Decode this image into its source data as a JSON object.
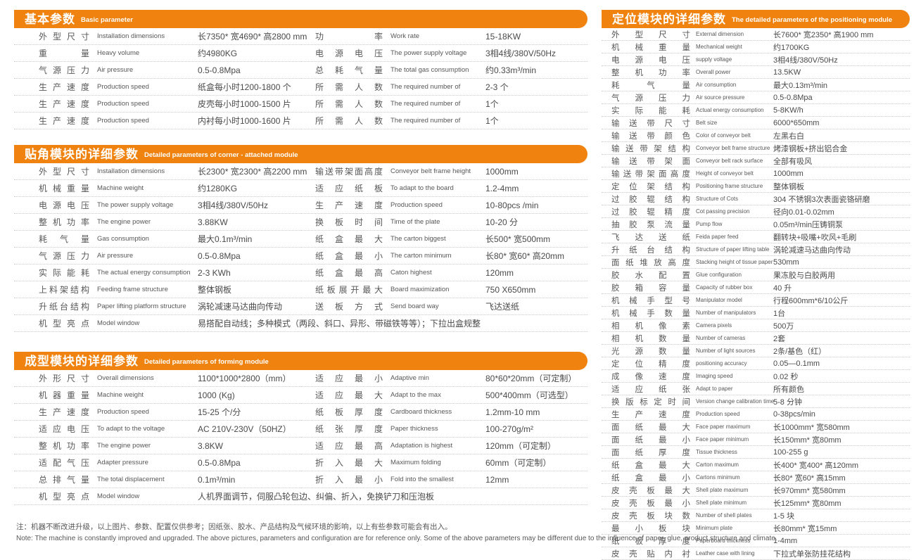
{
  "page": {
    "background": "#ffffff",
    "accent_orange": "#f0830f",
    "text_gray": "#595757"
  },
  "tables": [
    {
      "title_zh": "基本参数",
      "title_en": "Basic parameter",
      "rows_left": [
        {
          "zh": "外型尺寸",
          "en": "Installation  dimensions",
          "val": "长7350* 宽4690* 高2800 mm"
        },
        {
          "zh": "重量",
          "en": "Heavy  volume",
          "val": "约4980KG"
        },
        {
          "zh": "气源压力",
          "en": "Air  pressure",
          "val": "0.5-0.8Mpa"
        },
        {
          "zh": "生产速度",
          "en": "Production  speed",
          "val": "纸盒每小时1200-1800 个"
        },
        {
          "zh": "生产速度",
          "en": "Production  speed",
          "val": "皮壳每小时1000-1500 片"
        },
        {
          "zh": "生产速度",
          "en": "Production  speed",
          "val": "内衬每小时1000-1600 片"
        }
      ],
      "rows_right": [
        {
          "zh": "功率",
          "en": "Work rate",
          "val": "15-18KW"
        },
        {
          "zh": "电源电压",
          "en": "The power supply voltage",
          "val": "3相4线/380V/50Hz"
        },
        {
          "zh": "总耗气量",
          "en": "The total gas consumption",
          "val": "约0.33m³/min"
        },
        {
          "zh": "所需人数",
          "en": "The required number of",
          "val": "2-3 个"
        },
        {
          "zh": "所需人数",
          "en": "The required number of",
          "val": "1个"
        },
        {
          "zh": "所需人数",
          "en": "The required number of",
          "val": "1个"
        }
      ],
      "rows_full": []
    },
    {
      "title_zh": "贴角模块的详细参数",
      "title_en": "Detailed parameters of corner - attached module",
      "rows_left": [
        {
          "zh": "外型尺寸",
          "en": "Installation  dimensions",
          "val": "长2300* 宽2300* 高2200 mm"
        },
        {
          "zh": "机械重量",
          "en": "Machine  weight",
          "val": "约1280KG"
        },
        {
          "zh": "电源电压",
          "en": "The power supply voltage",
          "val": "3相4线/380V/50Hz"
        },
        {
          "zh": "整机功率",
          "en": "The engine power",
          "val": "3.88KW"
        },
        {
          "zh": "耗气量",
          "en": "Gas consumption",
          "val": "最大0.1m³/min"
        },
        {
          "zh": "气源压力",
          "en": "Air pressure",
          "val": "0.5-0.8Mpa"
        },
        {
          "zh": "实际能耗",
          "en": "The actual energy consumption",
          "val": "2-3 KWh"
        },
        {
          "zh": "上料架结构",
          "en": "Feeding frame structure",
          "val": "整体钢板"
        },
        {
          "zh": "升纸台结构",
          "en": "Paper lifting platform structure",
          "val": "涡轮减速马达曲向传动"
        }
      ],
      "rows_right": [
        {
          "zh": "输送带架面高度",
          "en": "Conveyor belt frame height",
          "val": "1000mm"
        },
        {
          "zh": "适应纸板",
          "en": "To adapt to the board",
          "val": "1.2-4mm"
        },
        {
          "zh": "生产速度",
          "en": "Production  speed",
          "val": "10-80pcs /min"
        },
        {
          "zh": "换板时间",
          "en": "Time of the plate",
          "val": "10-20 分"
        },
        {
          "zh": "纸盒最大",
          "en": "The carton biggest",
          "val": "长500* 宽500mm"
        },
        {
          "zh": "纸盒最小",
          "en": "The carton minimum",
          "val": "长80* 宽60* 高20mm"
        },
        {
          "zh": "纸盒最高",
          "en": "Caton highest",
          "val": "120mm"
        },
        {
          "zh": "纸板展开最大",
          "en": "Board  maximization",
          "val": "750 X650mm"
        },
        {
          "zh": "送板方式",
          "en": "Send board way",
          "val": "飞达送纸"
        }
      ],
      "rows_full": [
        {
          "zh": "机型亮点",
          "en": "Model window",
          "val": "易搭配自动线；多种模式（两段、斜口、异形、带磁铁等等）；下拉出盒规整"
        }
      ]
    },
    {
      "title_zh": "成型模块的详细参数",
      "title_en": "Detailed parameters of forming module",
      "rows_left": [
        {
          "zh": "外形尺寸",
          "en": "Overall  dimensions",
          "val": "1100*1000*2800（mm）"
        },
        {
          "zh": "机器重量",
          "en": "Machine  weight",
          "val": "1000 (Kg)"
        },
        {
          "zh": "生产速度",
          "en": "Production  speed",
          "val": "15-25 个/分"
        },
        {
          "zh": "适应电压",
          "en": "To adapt to the voltage",
          "val": "AC 210V-230V（50HZ）"
        },
        {
          "zh": "整机功率",
          "en": "The engine power",
          "val": "3.8KW"
        },
        {
          "zh": "适配气压",
          "en": "Adapter pressure",
          "val": "0.5-0.8Mpa"
        },
        {
          "zh": "总排气量",
          "en": "The total displacement",
          "val": "0.1m³/min"
        }
      ],
      "rows_right": [
        {
          "zh": "适应最小",
          "en": "Adaptive min",
          "val": "80*60*20mm（可定制）"
        },
        {
          "zh": "适应最大",
          "en": "Adapt to the max",
          "val": "500*400mm（可选型）"
        },
        {
          "zh": "纸板厚度",
          "en": "Cardboard  thickness",
          "val": "1.2mm-10 mm"
        },
        {
          "zh": "纸张厚度",
          "en": "Paper  thickness",
          "val": "100-270g/m²"
        },
        {
          "zh": "适应最高",
          "en": "Adaptation  is highest",
          "val": "120mm（可定制）"
        },
        {
          "zh": "折入最大",
          "en": "Maximum  folding",
          "val": "60mm（可定制）"
        },
        {
          "zh": "折入最小",
          "en": "Fold into the smallest",
          "val": "12mm"
        }
      ],
      "rows_full": [
        {
          "zh": "机型亮点",
          "en": "Model window",
          "val": "人机界面调节，伺服凸轮包边、纠偏、折入，免换铲刀和压泡板"
        }
      ]
    },
    {
      "title_zh": "定位模块的详细参数",
      "title_en": "The detailed parameters of the positioning module",
      "rows": [
        {
          "zh": "外型尺寸",
          "en": "External  dimension",
          "val": "长7600* 宽2350* 高1900 mm"
        },
        {
          "zh": "机械重量",
          "en": "Mechanical  weight",
          "val": "约1700KG"
        },
        {
          "zh": "电源电压",
          "en": "supply voltage",
          "val": "3相4线/380V/50Hz"
        },
        {
          "zh": "整机功率",
          "en": "Overall  power",
          "val": "13.5KW"
        },
        {
          "zh": "耗气量",
          "en": "Air consumption",
          "val": "最大0.13m³/min"
        },
        {
          "zh": "气源压力",
          "en": "Air source  pressure",
          "val": "0.5-0.8Mpa"
        },
        {
          "zh": "实际能耗",
          "en": "Actual energy consumption",
          "val": "5-8KW/h"
        },
        {
          "zh": "输送带尺寸",
          "en": "Belt  size",
          "val": "6000*650mm"
        },
        {
          "zh": "输送带颜色",
          "en": "Color of conveyor belt",
          "val": "左黑右白"
        },
        {
          "zh": "输送带架结构",
          "en": "Conveyor belt frame structure",
          "val": "烤漆钢板+挤出铝合金"
        },
        {
          "zh": "输送带架面",
          "en": "Conveyor belt rack surface",
          "val": "全部有吸风"
        },
        {
          "zh": "输送带架面高度",
          "en": "Height of conveyor belt",
          "val": "1000mm"
        },
        {
          "zh": "定位架结构",
          "en": "Positioning  frame structure",
          "val": "整体钢板"
        },
        {
          "zh": "过胶辊结构",
          "en": "Structure  of Cots",
          "val": "304 不锈钢3次表面瓷铬研磨"
        },
        {
          "zh": "过胶辊精度",
          "en": "Cot passing precision",
          "val": "径向0.01-0.02mm"
        },
        {
          "zh": "抽胶泵流量",
          "en": "Pump  flow",
          "val": "0.05m³/min压铸铜泵"
        },
        {
          "zh": "飞达送纸",
          "en": "Feida paper feed",
          "val": "翻转块+吸嘴+吹风+毛刷"
        },
        {
          "zh": "升纸台结构",
          "en": "Structure  of paper lifting table",
          "val": "涡轮减速马达曲向传动"
        },
        {
          "zh": "面纸堆放高度",
          "en": "Stacking  height of tissue paper",
          "val": "530mm"
        },
        {
          "zh": "胶水配置",
          "en": "Glue configuration",
          "val": "果冻胶与白胶两用"
        },
        {
          "zh": "胶箱容量",
          "en": "Capacity  of rubber box",
          "val": "40 升"
        },
        {
          "zh": "机械手型号",
          "en": "Manipulator  model",
          "val": "行程600mm*6/10公斤"
        },
        {
          "zh": "机械手数量",
          "en": "Number of manipulators",
          "val": "1台"
        },
        {
          "zh": "相机像素",
          "en": "Camera  pixels",
          "val": "500万"
        },
        {
          "zh": "相机数量",
          "en": "Number  of cameras",
          "val": "2套"
        },
        {
          "zh": "光源数量",
          "en": "Number  of light sources",
          "val": "2条/基色（红）"
        },
        {
          "zh": "定位精度",
          "en": "positioning  accuracy",
          "val": "0.05—0.1mm"
        },
        {
          "zh": "成像速度",
          "en": "Imaging speed",
          "val": "0.02 秒"
        },
        {
          "zh": "适应纸张",
          "en": "Adapt to paper",
          "val": "所有颜色"
        },
        {
          "zh": "换版标定时间",
          "en": "Version change calibration  time",
          "val": "5-8 分钟"
        },
        {
          "zh": "生产速度",
          "en": "Production  speed",
          "val": "0-38pcs/min"
        },
        {
          "zh": "面纸最大",
          "en": "Face paper maximum",
          "val": "长1000mm* 宽580mm"
        },
        {
          "zh": "面纸最小",
          "en": "Face paper minimum",
          "val": "长150mm* 宽80mm"
        },
        {
          "zh": "面纸厚度",
          "en": "Tissue  thickness",
          "val": "100-255 g"
        },
        {
          "zh": "纸盒最大",
          "en": "Carton  maximum",
          "val": "长400* 宽400* 高120mm"
        },
        {
          "zh": "纸盒最小",
          "en": "Cartons  minimum",
          "val": "长80* 宽60* 高15mm"
        },
        {
          "zh": "皮壳板最大",
          "en": "Shell  plate maximum",
          "val": "长970mm* 宽580mm"
        },
        {
          "zh": "皮壳板最小",
          "en": "Shell  plate minimum",
          "val": "长125mm* 宽80mm"
        },
        {
          "zh": "皮壳板块数",
          "en": "Number  of shell plates",
          "val": "1-5 块"
        },
        {
          "zh": "最小板块",
          "en": "Minimum  plate",
          "val": "长80mm* 宽15mm"
        },
        {
          "zh": "纸板厚度",
          "en": "Paperboard  thickness",
          "val": "1-4mm"
        },
        {
          "zh": "皮壳贴内衬",
          "en": "Leather  case with lining",
          "val": "下拉式单张防挂花结构"
        }
      ]
    }
  ],
  "notes": {
    "zh": "注：机器不断改进升级，以上图片、参数、配置仅供参考；因纸张、胶水、产品结构及气候环境的影响，以上有些参数可能会有出入。",
    "en": "Note: The machine is constantly improved and upgraded. The above pictures, parameters and configuration are for reference only. Some of the above parameters may be different due to the influence of paper, glue, product structure and climate."
  }
}
